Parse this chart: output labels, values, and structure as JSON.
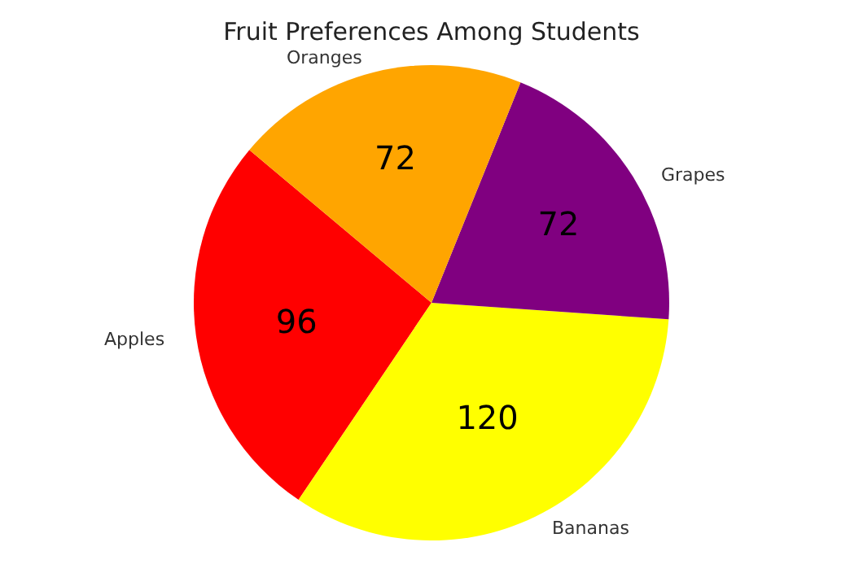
{
  "chart_data": {
    "type": "pie",
    "title": "Fruit Preferences Among Students",
    "categories": [
      "Apples",
      "Bananas",
      "Grapes",
      "Oranges"
    ],
    "values": [
      96,
      120,
      72,
      72
    ],
    "colors": [
      "#ff0000",
      "#ffff00",
      "#800080",
      "#ffa500"
    ],
    "data_labels": true
  }
}
